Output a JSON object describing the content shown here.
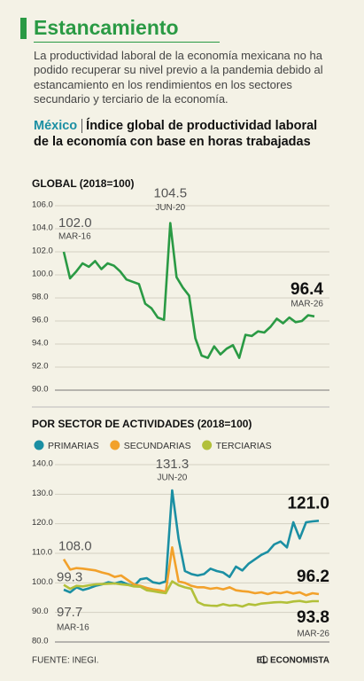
{
  "header": {
    "title": "Estancamiento",
    "intro": "La productividad laboral de la economía mexicana no ha podido recuperar su nivel previo a la pandemia debido al estancamiento en los rendimientos en los sectores secundario y terciario de la economía.",
    "highlight": "México",
    "subtitle": "Índice global de productividad laboral de la economía con base en horas trabajadas"
  },
  "chart_data": [
    {
      "type": "line",
      "title": "GLOBAL (2018=100)",
      "categories": [
        "MAR-16",
        null,
        null,
        null,
        null,
        null,
        null,
        null,
        null,
        null,
        null,
        null,
        null,
        null,
        null,
        null,
        null,
        "JUN-20",
        null,
        null,
        null,
        null,
        null,
        null,
        null,
        null,
        null,
        null,
        null,
        null,
        null,
        null,
        null,
        null,
        null,
        null,
        null,
        null,
        null,
        null,
        "MAR-26"
      ],
      "series": [
        {
          "color": "#2a9a44",
          "values": [
            102.0,
            99.7,
            100.3,
            101.0,
            100.7,
            101.2,
            100.5,
            101.0,
            100.8,
            100.3,
            99.6,
            99.4,
            99.2,
            97.5,
            97.1,
            96.3,
            96.1,
            104.5,
            99.8,
            98.9,
            98.2,
            94.5,
            93.0,
            92.8,
            93.8,
            93.1,
            93.6,
            93.9,
            92.8,
            94.8,
            94.7,
            95.1,
            95.0,
            95.5,
            96.2,
            95.8,
            96.3,
            95.9,
            96.0,
            96.5,
            96.4
          ],
          "value_labels": [
            "102.0",
            null,
            null,
            null,
            null,
            null,
            null,
            null,
            null,
            null,
            null,
            null,
            null,
            null,
            null,
            null,
            null,
            "104.5",
            null,
            null,
            null,
            null,
            null,
            null,
            null,
            null,
            null,
            null,
            null,
            null,
            null,
            null,
            null,
            null,
            null,
            null,
            null,
            null,
            null,
            null,
            "96.4"
          ]
        }
      ],
      "ylim": [
        90,
        106
      ],
      "yticks": [
        {
          "value": 90,
          "label": "90.0"
        },
        {
          "value": 92,
          "label": "92.0"
        },
        {
          "value": 94,
          "label": "94.0"
        },
        {
          "value": 96,
          "label": "96.0"
        },
        {
          "value": 98,
          "label": "98.0"
        },
        {
          "value": 100,
          "label": "100.0"
        },
        {
          "value": 102,
          "label": "102.0"
        },
        {
          "value": 104,
          "label": "104.0"
        },
        {
          "value": 106,
          "label": "106.0"
        }
      ],
      "grid": true
    },
    {
      "type": "line",
      "title": "POR SECTOR DE ACTIVIDADES (2018=100)",
      "categories": [
        "MAR-16",
        null,
        null,
        null,
        null,
        null,
        null,
        null,
        null,
        null,
        null,
        null,
        null,
        null,
        null,
        null,
        null,
        "JUN-20",
        null,
        null,
        null,
        null,
        null,
        null,
        null,
        null,
        null,
        null,
        null,
        null,
        null,
        null,
        null,
        null,
        null,
        null,
        null,
        null,
        null,
        null,
        "MAR-26"
      ],
      "series": [
        {
          "name": "PRIMARIAS",
          "color": "#1b8fa3",
          "values": [
            97.7,
            96.8,
            98.5,
            97.6,
            98.2,
            99.0,
            99.5,
            100.2,
            99.8,
            100.4,
            99.5,
            98.9,
            101.2,
            101.6,
            100.2,
            99.8,
            100.5,
            131.3,
            115.0,
            104.0,
            103.0,
            102.5,
            103.0,
            104.8,
            104.0,
            103.5,
            102.0,
            105.5,
            104.2,
            106.5,
            108.0,
            109.5,
            110.5,
            113.0,
            114.0,
            112.0,
            120.5,
            115.0,
            120.5,
            120.8,
            121.0
          ],
          "value_labels": [
            "97.7",
            null,
            null,
            null,
            null,
            null,
            null,
            null,
            null,
            null,
            null,
            null,
            null,
            null,
            null,
            null,
            null,
            "131.3",
            null,
            null,
            null,
            null,
            null,
            null,
            null,
            null,
            null,
            null,
            null,
            null,
            null,
            null,
            null,
            null,
            null,
            null,
            null,
            null,
            null,
            null,
            "121.0"
          ]
        },
        {
          "name": "SECUNDARIAS",
          "color": "#f2a12b",
          "values": [
            108.0,
            104.5,
            105.0,
            104.8,
            104.5,
            104.2,
            103.5,
            103.0,
            102.0,
            102.5,
            101.0,
            99.5,
            99.0,
            98.3,
            97.8,
            97.5,
            97.0,
            112.0,
            100.5,
            100.0,
            99.0,
            98.5,
            98.5,
            98.0,
            98.3,
            97.8,
            98.5,
            97.5,
            97.2,
            97.0,
            96.5,
            96.8,
            96.2,
            96.8,
            96.5,
            97.0,
            96.4,
            96.8,
            95.8,
            96.5,
            96.2
          ],
          "value_labels": [
            "108.0",
            null,
            null,
            null,
            null,
            null,
            null,
            null,
            null,
            null,
            null,
            null,
            null,
            null,
            null,
            null,
            null,
            null,
            null,
            null,
            null,
            null,
            null,
            null,
            null,
            null,
            null,
            null,
            null,
            null,
            null,
            null,
            null,
            null,
            null,
            null,
            null,
            null,
            null,
            null,
            "96.2"
          ]
        },
        {
          "name": "TERCIARIAS",
          "color": "#b2c03a",
          "values": [
            99.3,
            98.0,
            99.0,
            98.8,
            99.2,
            99.5,
            99.6,
            99.7,
            99.8,
            99.5,
            99.3,
            98.8,
            98.7,
            97.5,
            97.2,
            96.8,
            96.5,
            100.5,
            99.2,
            98.5,
            98.0,
            93.5,
            92.5,
            92.3,
            92.2,
            92.8,
            92.3,
            92.5,
            92.0,
            92.8,
            92.5,
            93.0,
            93.2,
            93.4,
            93.5,
            93.3,
            93.7,
            93.9,
            93.5,
            93.8,
            93.8
          ],
          "value_labels": [
            "99.3",
            null,
            null,
            null,
            null,
            null,
            null,
            null,
            null,
            null,
            null,
            null,
            null,
            null,
            null,
            null,
            null,
            null,
            null,
            null,
            null,
            null,
            null,
            null,
            null,
            null,
            null,
            null,
            null,
            null,
            null,
            null,
            null,
            null,
            null,
            null,
            null,
            null,
            null,
            null,
            "93.8"
          ]
        }
      ],
      "ylim": [
        80,
        140
      ],
      "yticks": [
        {
          "value": 80,
          "label": "80.0"
        },
        {
          "value": 90,
          "label": "90.0"
        },
        {
          "value": 100,
          "label": "100.0"
        },
        {
          "value": 110,
          "label": "110.0"
        },
        {
          "value": 120,
          "label": "120.0"
        },
        {
          "value": 130,
          "label": "130.0"
        },
        {
          "value": 140,
          "label": "140.0"
        }
      ],
      "grid": true,
      "legend": "top"
    }
  ],
  "footer": {
    "source": "FUENTE: INEGI.",
    "logo": "EL ECONOMISTA"
  }
}
